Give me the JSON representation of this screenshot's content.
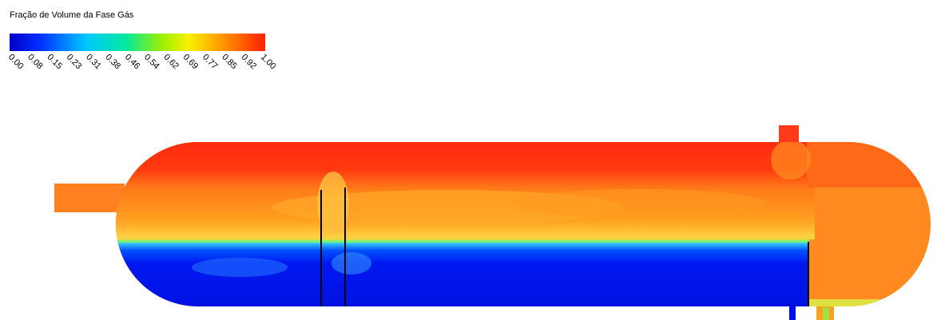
{
  "legend": {
    "title": "Fração de Volume da Fase Gás",
    "ticks": [
      "0.00",
      "0.08",
      "0.15",
      "0.23",
      "0.31",
      "0.38",
      "0.46",
      "0.54",
      "0.62",
      "0.69",
      "0.77",
      "0.85",
      "0.92",
      "1.00"
    ]
  }
}
